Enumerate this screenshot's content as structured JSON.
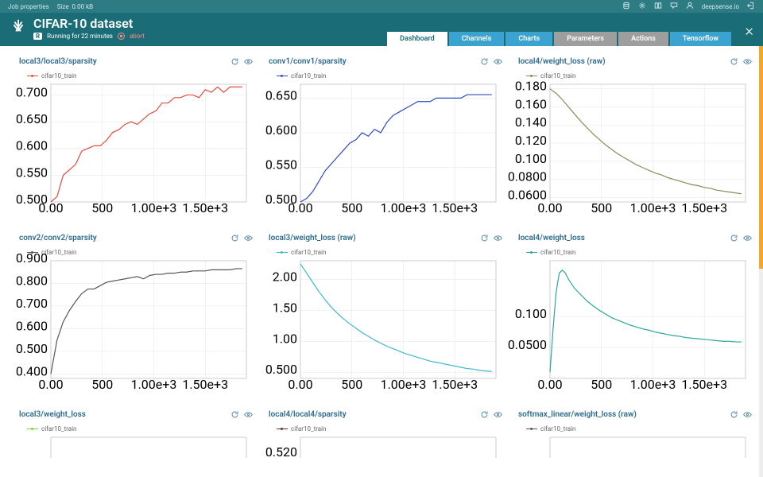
{
  "topbar": {
    "job_properties": "Job properties",
    "size_label": "Size",
    "size_value": "0.00 kB",
    "brand": "deepsense.io"
  },
  "header": {
    "title": "CIFAR-10 dataset",
    "badge": "R",
    "status": "Running for 22 minutes",
    "abort": "abort"
  },
  "tabs": [
    {
      "label": "Dashboard",
      "style": "active"
    },
    {
      "label": "Channels",
      "style": "blue"
    },
    {
      "label": "Charts",
      "style": "blue"
    },
    {
      "label": "Parameters",
      "style": "grey"
    },
    {
      "label": "Actions",
      "style": "grey"
    },
    {
      "label": "Tensorflow",
      "style": "blue"
    }
  ],
  "axis_x": {
    "ticks": [
      0,
      500,
      1000,
      1500
    ],
    "labels": [
      "0.00",
      "500",
      "1.00e+3",
      "1.50e+3"
    ],
    "max": 1900
  },
  "charts": [
    {
      "title": "local3/local3/sparsity",
      "legend": "cifar10_train",
      "color": "#e74c3c",
      "ymin": 0.5,
      "ymax": 0.72,
      "yticks": [
        0.5,
        0.55,
        0.6,
        0.65,
        0.7
      ],
      "ylabels": [
        "0.500",
        "0.550",
        "0.600",
        "0.650",
        "0.700"
      ],
      "data": [
        [
          0,
          0.5
        ],
        [
          60,
          0.51
        ],
        [
          120,
          0.55
        ],
        [
          180,
          0.56
        ],
        [
          240,
          0.57
        ],
        [
          300,
          0.595
        ],
        [
          360,
          0.6
        ],
        [
          420,
          0.605
        ],
        [
          480,
          0.605
        ],
        [
          540,
          0.615
        ],
        [
          600,
          0.63
        ],
        [
          660,
          0.635
        ],
        [
          720,
          0.645
        ],
        [
          780,
          0.65
        ],
        [
          840,
          0.645
        ],
        [
          900,
          0.655
        ],
        [
          960,
          0.665
        ],
        [
          1020,
          0.67
        ],
        [
          1080,
          0.685
        ],
        [
          1140,
          0.685
        ],
        [
          1200,
          0.695
        ],
        [
          1260,
          0.695
        ],
        [
          1320,
          0.7
        ],
        [
          1380,
          0.7
        ],
        [
          1440,
          0.695
        ],
        [
          1500,
          0.71
        ],
        [
          1560,
          0.705
        ],
        [
          1620,
          0.715
        ],
        [
          1680,
          0.705
        ],
        [
          1740,
          0.715
        ],
        [
          1800,
          0.715
        ],
        [
          1860,
          0.715
        ]
      ]
    },
    {
      "title": "conv1/conv1/sparsity",
      "legend": "cifar10_train",
      "color": "#2e4bc7",
      "ymin": 0.5,
      "ymax": 0.67,
      "yticks": [
        0.5,
        0.55,
        0.6,
        0.65
      ],
      "ylabels": [
        "0.500",
        "0.550",
        "0.600",
        "0.650"
      ],
      "data": [
        [
          0,
          0.5
        ],
        [
          60,
          0.505
        ],
        [
          120,
          0.515
        ],
        [
          180,
          0.53
        ],
        [
          240,
          0.545
        ],
        [
          300,
          0.555
        ],
        [
          360,
          0.565
        ],
        [
          420,
          0.575
        ],
        [
          480,
          0.585
        ],
        [
          540,
          0.59
        ],
        [
          600,
          0.6
        ],
        [
          660,
          0.595
        ],
        [
          720,
          0.605
        ],
        [
          780,
          0.6
        ],
        [
          840,
          0.615
        ],
        [
          900,
          0.625
        ],
        [
          960,
          0.63
        ],
        [
          1020,
          0.635
        ],
        [
          1080,
          0.64
        ],
        [
          1140,
          0.645
        ],
        [
          1200,
          0.645
        ],
        [
          1260,
          0.645
        ],
        [
          1320,
          0.65
        ],
        [
          1380,
          0.65
        ],
        [
          1440,
          0.65
        ],
        [
          1500,
          0.65
        ],
        [
          1560,
          0.65
        ],
        [
          1620,
          0.655
        ],
        [
          1680,
          0.655
        ],
        [
          1740,
          0.655
        ],
        [
          1800,
          0.655
        ],
        [
          1860,
          0.655
        ]
      ]
    },
    {
      "title": "local4/weight_loss (raw)",
      "legend": "cifar10_train",
      "color": "#8a8a5c",
      "ymin": 0.055,
      "ymax": 0.185,
      "yticks": [
        0.06,
        0.08,
        0.1,
        0.12,
        0.14,
        0.16,
        0.18
      ],
      "ylabels": [
        "0.0600",
        "0.0800",
        "0.100",
        "0.120",
        "0.140",
        "0.160",
        "0.180"
      ],
      "data": [
        [
          0,
          0.18
        ],
        [
          60,
          0.175
        ],
        [
          120,
          0.168
        ],
        [
          180,
          0.16
        ],
        [
          240,
          0.152
        ],
        [
          300,
          0.144
        ],
        [
          360,
          0.137
        ],
        [
          420,
          0.13
        ],
        [
          480,
          0.124
        ],
        [
          540,
          0.118
        ],
        [
          600,
          0.113
        ],
        [
          660,
          0.108
        ],
        [
          720,
          0.104
        ],
        [
          780,
          0.1
        ],
        [
          840,
          0.096
        ],
        [
          900,
          0.093
        ],
        [
          960,
          0.09
        ],
        [
          1020,
          0.087
        ],
        [
          1080,
          0.085
        ],
        [
          1140,
          0.082
        ],
        [
          1200,
          0.08
        ],
        [
          1260,
          0.078
        ],
        [
          1320,
          0.076
        ],
        [
          1380,
          0.074
        ],
        [
          1440,
          0.073
        ],
        [
          1500,
          0.071
        ],
        [
          1560,
          0.07
        ],
        [
          1620,
          0.068
        ],
        [
          1680,
          0.067
        ],
        [
          1740,
          0.066
        ],
        [
          1800,
          0.065
        ],
        [
          1860,
          0.064
        ]
      ]
    },
    {
      "title": "conv2/conv2/sparsity",
      "legend": "cifar10_train",
      "color": "#555555",
      "ymin": 0.38,
      "ymax": 0.9,
      "yticks": [
        0.4,
        0.5,
        0.6,
        0.7,
        0.8,
        0.9
      ],
      "ylabels": [
        "0.400",
        "0.500",
        "0.600",
        "0.700",
        "0.800",
        "0.900"
      ],
      "data": [
        [
          0,
          0.4
        ],
        [
          60,
          0.55
        ],
        [
          120,
          0.63
        ],
        [
          180,
          0.68
        ],
        [
          240,
          0.72
        ],
        [
          300,
          0.755
        ],
        [
          360,
          0.775
        ],
        [
          420,
          0.775
        ],
        [
          480,
          0.79
        ],
        [
          540,
          0.805
        ],
        [
          600,
          0.81
        ],
        [
          660,
          0.815
        ],
        [
          720,
          0.82
        ],
        [
          780,
          0.825
        ],
        [
          840,
          0.83
        ],
        [
          900,
          0.82
        ],
        [
          960,
          0.835
        ],
        [
          1020,
          0.84
        ],
        [
          1080,
          0.84
        ],
        [
          1140,
          0.845
        ],
        [
          1200,
          0.845
        ],
        [
          1260,
          0.85
        ],
        [
          1320,
          0.85
        ],
        [
          1380,
          0.855
        ],
        [
          1440,
          0.855
        ],
        [
          1500,
          0.855
        ],
        [
          1560,
          0.86
        ],
        [
          1620,
          0.86
        ],
        [
          1680,
          0.86
        ],
        [
          1740,
          0.86
        ],
        [
          1800,
          0.865
        ],
        [
          1860,
          0.865
        ]
      ]
    },
    {
      "title": "local3/weight_loss (raw)",
      "legend": "cifar10_train",
      "color": "#3bb8d0",
      "ymin": 0.4,
      "ymax": 2.3,
      "yticks": [
        0.5,
        1.0,
        1.5,
        2.0
      ],
      "ylabels": [
        "0.500",
        "1.00",
        "1.50",
        "2.00"
      ],
      "data": [
        [
          0,
          2.25
        ],
        [
          60,
          2.1
        ],
        [
          120,
          1.95
        ],
        [
          180,
          1.8
        ],
        [
          240,
          1.67
        ],
        [
          300,
          1.55
        ],
        [
          360,
          1.45
        ],
        [
          420,
          1.36
        ],
        [
          480,
          1.28
        ],
        [
          540,
          1.21
        ],
        [
          600,
          1.14
        ],
        [
          660,
          1.08
        ],
        [
          720,
          1.02
        ],
        [
          780,
          0.97
        ],
        [
          840,
          0.92
        ],
        [
          900,
          0.88
        ],
        [
          960,
          0.84
        ],
        [
          1020,
          0.8
        ],
        [
          1080,
          0.77
        ],
        [
          1140,
          0.74
        ],
        [
          1200,
          0.71
        ],
        [
          1260,
          0.68
        ],
        [
          1320,
          0.66
        ],
        [
          1380,
          0.64
        ],
        [
          1440,
          0.62
        ],
        [
          1500,
          0.6
        ],
        [
          1560,
          0.58
        ],
        [
          1620,
          0.56
        ],
        [
          1680,
          0.55
        ],
        [
          1740,
          0.53
        ],
        [
          1800,
          0.52
        ],
        [
          1860,
          0.51
        ]
      ]
    },
    {
      "title": "local4/weight_loss",
      "legend": "cifar10_train",
      "color": "#2aa89a",
      "ymin": 0.0,
      "ymax": 0.19,
      "yticks": [
        0.05,
        0.1
      ],
      "ylabels": [
        "0.0500",
        "0.100"
      ],
      "data": [
        [
          0,
          0.01
        ],
        [
          30,
          0.08
        ],
        [
          60,
          0.14
        ],
        [
          90,
          0.17
        ],
        [
          120,
          0.175
        ],
        [
          150,
          0.17
        ],
        [
          180,
          0.16
        ],
        [
          240,
          0.145
        ],
        [
          300,
          0.135
        ],
        [
          360,
          0.125
        ],
        [
          420,
          0.117
        ],
        [
          480,
          0.11
        ],
        [
          540,
          0.104
        ],
        [
          600,
          0.098
        ],
        [
          660,
          0.094
        ],
        [
          720,
          0.09
        ],
        [
          780,
          0.086
        ],
        [
          840,
          0.083
        ],
        [
          900,
          0.08
        ],
        [
          960,
          0.078
        ],
        [
          1020,
          0.075
        ],
        [
          1080,
          0.073
        ],
        [
          1140,
          0.071
        ],
        [
          1200,
          0.069
        ],
        [
          1260,
          0.068
        ],
        [
          1320,
          0.066
        ],
        [
          1380,
          0.065
        ],
        [
          1440,
          0.064
        ],
        [
          1500,
          0.063
        ],
        [
          1560,
          0.062
        ],
        [
          1620,
          0.061
        ],
        [
          1680,
          0.06
        ],
        [
          1740,
          0.06
        ],
        [
          1800,
          0.059
        ],
        [
          1860,
          0.059
        ]
      ]
    }
  ],
  "partial_charts": [
    {
      "title": "local3/weight_loss",
      "legend": "cifar10_train",
      "color": "#7fd13b",
      "extra_y": ""
    },
    {
      "title": "local4/local4/sparsity",
      "legend": "cifar10_train",
      "color": "#6b3030",
      "extra_y": "0.520"
    },
    {
      "title": "softmax_linear/weight_loss (raw)",
      "legend": "cifar10_train",
      "color": "#555555",
      "extra_y": ""
    }
  ]
}
